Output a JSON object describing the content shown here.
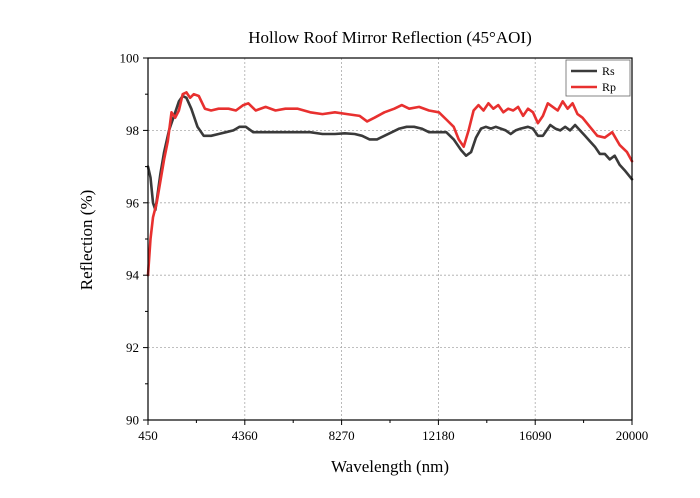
{
  "chart_data": {
    "type": "line",
    "title": "Hollow Roof Mirror Reflection (45°AOI)",
    "xlabel": "Wavelength (nm)",
    "ylabel": "Reflection (%)",
    "xlim": [
      450,
      20000
    ],
    "ylim": [
      90,
      100
    ],
    "xticks": [
      450,
      4360,
      8270,
      12180,
      16090,
      20000
    ],
    "xtick_labels": [
      "450",
      "4360",
      "8270",
      "12180",
      "16090",
      "20000"
    ],
    "yticks": [
      90,
      92,
      94,
      96,
      98,
      100
    ],
    "ytick_labels": [
      "90",
      "92",
      "94",
      "96",
      "98",
      "100"
    ],
    "grid": true,
    "legend_position": "top-right",
    "series": [
      {
        "name": "Rs",
        "color": "#3a3a3a",
        "points": [
          [
            450,
            97.0
          ],
          [
            550,
            96.7
          ],
          [
            650,
            96.0
          ],
          [
            750,
            95.8
          ],
          [
            850,
            96.3
          ],
          [
            950,
            96.8
          ],
          [
            1100,
            97.4
          ],
          [
            1300,
            98.0
          ],
          [
            1500,
            98.4
          ],
          [
            1700,
            98.8
          ],
          [
            1850,
            98.95
          ],
          [
            2000,
            98.9
          ],
          [
            2200,
            98.6
          ],
          [
            2450,
            98.1
          ],
          [
            2700,
            97.85
          ],
          [
            3000,
            97.85
          ],
          [
            3300,
            97.9
          ],
          [
            3600,
            97.95
          ],
          [
            3900,
            98.0
          ],
          [
            4150,
            98.1
          ],
          [
            4400,
            98.1
          ],
          [
            4700,
            97.95
          ],
          [
            5200,
            97.95
          ],
          [
            5800,
            97.95
          ],
          [
            6400,
            97.95
          ],
          [
            7000,
            97.95
          ],
          [
            7500,
            97.9
          ],
          [
            8000,
            97.9
          ],
          [
            8400,
            97.92
          ],
          [
            8800,
            97.9
          ],
          [
            9100,
            97.85
          ],
          [
            9400,
            97.75
          ],
          [
            9700,
            97.75
          ],
          [
            10000,
            97.85
          ],
          [
            10300,
            97.95
          ],
          [
            10600,
            98.05
          ],
          [
            10900,
            98.1
          ],
          [
            11200,
            98.1
          ],
          [
            11500,
            98.05
          ],
          [
            11800,
            97.95
          ],
          [
            12200,
            97.95
          ],
          [
            12500,
            97.95
          ],
          [
            12800,
            97.75
          ],
          [
            13100,
            97.45
          ],
          [
            13300,
            97.3
          ],
          [
            13500,
            97.4
          ],
          [
            13700,
            97.8
          ],
          [
            13900,
            98.05
          ],
          [
            14100,
            98.1
          ],
          [
            14300,
            98.05
          ],
          [
            14500,
            98.1
          ],
          [
            14700,
            98.05
          ],
          [
            14900,
            98.0
          ],
          [
            15100,
            97.9
          ],
          [
            15300,
            98.0
          ],
          [
            15500,
            98.05
          ],
          [
            15800,
            98.1
          ],
          [
            16000,
            98.05
          ],
          [
            16200,
            97.85
          ],
          [
            16400,
            97.85
          ],
          [
            16700,
            98.15
          ],
          [
            16900,
            98.05
          ],
          [
            17100,
            98.0
          ],
          [
            17300,
            98.1
          ],
          [
            17500,
            98.0
          ],
          [
            17700,
            98.15
          ],
          [
            17900,
            98.0
          ],
          [
            18100,
            97.85
          ],
          [
            18300,
            97.7
          ],
          [
            18500,
            97.55
          ],
          [
            18700,
            97.35
          ],
          [
            18900,
            97.35
          ],
          [
            19100,
            97.2
          ],
          [
            19300,
            97.3
          ],
          [
            19500,
            97.05
          ],
          [
            19700,
            96.9
          ],
          [
            20000,
            96.65
          ]
        ]
      },
      {
        "name": "Rp",
        "color": "#e8302f",
        "points": [
          [
            450,
            94.0
          ],
          [
            550,
            95.0
          ],
          [
            650,
            95.6
          ],
          [
            800,
            96.0
          ],
          [
            950,
            96.6
          ],
          [
            1100,
            97.2
          ],
          [
            1250,
            97.7
          ],
          [
            1400,
            98.5
          ],
          [
            1550,
            98.35
          ],
          [
            1700,
            98.55
          ],
          [
            1850,
            99.0
          ],
          [
            2000,
            99.05
          ],
          [
            2150,
            98.9
          ],
          [
            2300,
            99.0
          ],
          [
            2500,
            98.95
          ],
          [
            2750,
            98.6
          ],
          [
            3000,
            98.55
          ],
          [
            3300,
            98.6
          ],
          [
            3700,
            98.6
          ],
          [
            4000,
            98.55
          ],
          [
            4300,
            98.7
          ],
          [
            4500,
            98.75
          ],
          [
            4800,
            98.55
          ],
          [
            5200,
            98.65
          ],
          [
            5600,
            98.55
          ],
          [
            6000,
            98.6
          ],
          [
            6500,
            98.6
          ],
          [
            7000,
            98.5
          ],
          [
            7500,
            98.45
          ],
          [
            8000,
            98.5
          ],
          [
            8500,
            98.45
          ],
          [
            9000,
            98.4
          ],
          [
            9300,
            98.25
          ],
          [
            9600,
            98.35
          ],
          [
            10000,
            98.5
          ],
          [
            10400,
            98.6
          ],
          [
            10700,
            98.7
          ],
          [
            11000,
            98.6
          ],
          [
            11400,
            98.65
          ],
          [
            11800,
            98.55
          ],
          [
            12200,
            98.5
          ],
          [
            12500,
            98.3
          ],
          [
            12800,
            98.1
          ],
          [
            13000,
            97.75
          ],
          [
            13200,
            97.55
          ],
          [
            13400,
            98.0
          ],
          [
            13600,
            98.55
          ],
          [
            13800,
            98.7
          ],
          [
            14000,
            98.55
          ],
          [
            14200,
            98.75
          ],
          [
            14400,
            98.6
          ],
          [
            14600,
            98.7
          ],
          [
            14800,
            98.5
          ],
          [
            15000,
            98.6
          ],
          [
            15200,
            98.55
          ],
          [
            15400,
            98.65
          ],
          [
            15600,
            98.4
          ],
          [
            15800,
            98.6
          ],
          [
            16000,
            98.5
          ],
          [
            16200,
            98.2
          ],
          [
            16400,
            98.4
          ],
          [
            16600,
            98.75
          ],
          [
            16800,
            98.65
          ],
          [
            17000,
            98.55
          ],
          [
            17200,
            98.8
          ],
          [
            17400,
            98.6
          ],
          [
            17600,
            98.75
          ],
          [
            17800,
            98.45
          ],
          [
            18000,
            98.35
          ],
          [
            18300,
            98.1
          ],
          [
            18600,
            97.85
          ],
          [
            18900,
            97.8
          ],
          [
            19200,
            97.95
          ],
          [
            19500,
            97.6
          ],
          [
            19800,
            97.4
          ],
          [
            20000,
            97.15
          ]
        ]
      }
    ]
  }
}
